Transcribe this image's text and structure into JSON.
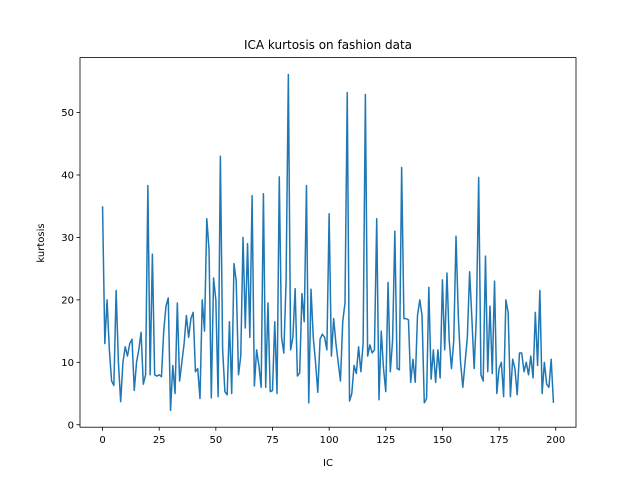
{
  "chart_data": {
    "type": "line",
    "title": "ICA kurtosis on fashion data",
    "xlabel": "IC",
    "ylabel": "kurtosis",
    "x": [
      0,
      1,
      2,
      3,
      4,
      5,
      6,
      7,
      8,
      9,
      10,
      11,
      12,
      13,
      14,
      15,
      16,
      17,
      18,
      19,
      20,
      21,
      22,
      23,
      24,
      25,
      26,
      27,
      28,
      29,
      30,
      31,
      32,
      33,
      34,
      35,
      36,
      37,
      38,
      39,
      40,
      41,
      42,
      43,
      44,
      45,
      46,
      47,
      48,
      49,
      50,
      51,
      52,
      53,
      54,
      55,
      56,
      57,
      58,
      59,
      60,
      61,
      62,
      63,
      64,
      65,
      66,
      67,
      68,
      69,
      70,
      71,
      72,
      73,
      74,
      75,
      76,
      77,
      78,
      79,
      80,
      81,
      82,
      83,
      84,
      85,
      86,
      87,
      88,
      89,
      90,
      91,
      92,
      93,
      94,
      95,
      96,
      97,
      98,
      99,
      100,
      101,
      102,
      103,
      104,
      105,
      106,
      107,
      108,
      109,
      110,
      111,
      112,
      113,
      114,
      115,
      116,
      117,
      118,
      119,
      120,
      121,
      122,
      123,
      124,
      125,
      126,
      127,
      128,
      129,
      130,
      131,
      132,
      133,
      134,
      135,
      136,
      137,
      138,
      139,
      140,
      141,
      142,
      143,
      144,
      145,
      146,
      147,
      148,
      149,
      150,
      151,
      152,
      153,
      154,
      155,
      156,
      157,
      158,
      159,
      160,
      161,
      162,
      163,
      164,
      165,
      166,
      167,
      168,
      169,
      170,
      171,
      172,
      173,
      174,
      175,
      176,
      177,
      178,
      179,
      180,
      181,
      182,
      183,
      184,
      185,
      186,
      187,
      188,
      189,
      190,
      191,
      192,
      193,
      194,
      195,
      196,
      197,
      198,
      199
    ],
    "series": [
      {
        "name": "kurtosis",
        "color": "#1f77b4",
        "values": [
          35,
          13,
          20,
          12,
          7,
          6.3,
          21.5,
          10,
          3.7,
          10,
          12.5,
          11,
          13,
          13.7,
          5.5,
          10,
          12,
          14.8,
          6.5,
          8,
          38.3,
          8,
          27.3,
          8,
          7.8,
          8,
          7.7,
          15,
          19,
          20.3,
          2.3,
          9.5,
          5,
          19.5,
          7,
          10,
          13,
          17.5,
          14,
          17,
          18,
          8.5,
          9,
          4.2,
          20,
          15,
          33,
          28,
          4.3,
          23.5,
          20,
          4.5,
          43,
          12,
          5.3,
          4.8,
          16.5,
          5,
          25.8,
          23,
          8,
          11,
          30,
          15.5,
          29,
          14,
          36.7,
          6.2,
          12,
          9.5,
          6,
          37,
          6,
          19.5,
          5.3,
          5.5,
          16.5,
          5,
          39.7,
          14,
          11.5,
          23,
          56.1,
          12,
          14,
          21.8,
          7.8,
          8.3,
          21,
          16.5,
          38.3,
          3.5,
          21.7,
          14,
          10,
          5.2,
          13.7,
          14.5,
          14,
          12,
          33.8,
          11,
          17,
          13,
          10,
          7,
          16.5,
          19.5,
          53.2,
          3.8,
          5,
          9.5,
          8.2,
          12.5,
          8.5,
          13,
          52.9,
          11,
          12.8,
          11.5,
          12,
          33,
          4,
          15,
          9,
          5.3,
          22.8,
          8.5,
          13.5,
          31,
          9,
          8.8,
          41.2,
          17,
          17,
          16.8,
          6.8,
          10.5,
          6.8,
          17.5,
          20,
          17.5,
          3.5,
          4.2,
          22,
          7.3,
          12,
          6.8,
          12,
          7.5,
          23.2,
          12,
          24.3,
          13.5,
          9,
          13.5,
          30.2,
          17.5,
          10,
          6,
          10,
          14,
          24.5,
          17,
          9,
          17.5,
          39.6,
          8,
          7,
          27,
          8.5,
          19,
          8.2,
          23,
          5,
          9,
          10,
          4.5,
          20,
          18,
          4.5,
          10.5,
          9,
          4.8,
          11.5,
          11.5,
          8.5,
          10,
          8,
          11,
          7.5,
          18,
          9.5,
          21.5,
          5,
          10,
          6.5,
          6,
          10.5,
          3.5
        ]
      }
    ],
    "xlim": [
      -9.95,
      208.95
    ],
    "ylim": [
      -0.39,
      58.8
    ],
    "xticks": [
      0,
      25,
      50,
      75,
      100,
      125,
      150,
      175,
      200
    ],
    "yticks": [
      0,
      10,
      20,
      30,
      40,
      50
    ]
  }
}
